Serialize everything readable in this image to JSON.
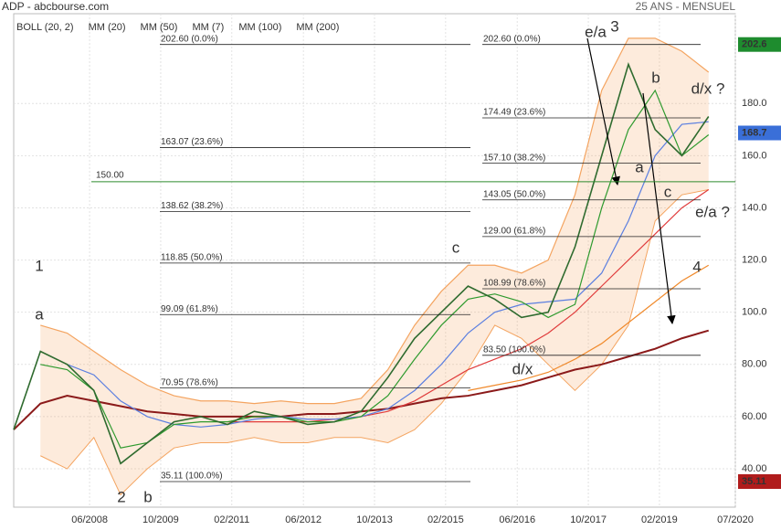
{
  "chart_data": {
    "type": "line",
    "title": "ADP - abcbourse.com",
    "subtitle": "25 ANS - MENSUEL",
    "x": [
      2007.0,
      2007.5,
      2008.0,
      2008.5,
      2009.0,
      2009.5,
      2010.0,
      2010.5,
      2011.0,
      2011.5,
      2012.0,
      2012.5,
      2013.0,
      2013.5,
      2014.0,
      2014.5,
      2015.0,
      2015.5,
      2016.0,
      2016.5,
      2017.0,
      2017.5,
      2018.0,
      2018.5,
      2019.0,
      2019.5,
      2020.0
    ],
    "series": [
      {
        "name": "ADP",
        "color": "#2f6b2f",
        "values": [
          55,
          85,
          80,
          70,
          42,
          50,
          58,
          60,
          57,
          62,
          60,
          57,
          58,
          62,
          75,
          90,
          100,
          110,
          105,
          98,
          100,
          125,
          160,
          195,
          170,
          160,
          175
        ]
      },
      {
        "name": "BOLL (20, 2)",
        "color": "#f4a460",
        "values": [
          null,
          95,
          92,
          85,
          78,
          72,
          68,
          66,
          66,
          65,
          66,
          65,
          65,
          67,
          78,
          95,
          108,
          118,
          118,
          115,
          120,
          145,
          185,
          205,
          205,
          200,
          192
        ],
        "lower": [
          null,
          45,
          40,
          52,
          30,
          40,
          48,
          50,
          50,
          52,
          50,
          50,
          52,
          52,
          50,
          55,
          65,
          78,
          95,
          90,
          80,
          70,
          80,
          95,
          135,
          145,
          147
        ]
      },
      {
        "name": "MM (20)",
        "color": "#5b7fe0",
        "values": [
          null,
          null,
          80,
          76,
          66,
          60,
          57,
          56,
          57,
          59,
          60,
          59,
          59,
          60,
          63,
          70,
          80,
          92,
          100,
          103,
          104,
          105,
          115,
          135,
          160,
          172,
          173
        ]
      },
      {
        "name": "MM (50)",
        "color": "#e03c3c",
        "values": [
          null,
          null,
          null,
          null,
          null,
          null,
          null,
          null,
          58,
          58,
          58,
          58,
          59,
          60,
          62,
          66,
          72,
          78,
          82,
          86,
          92,
          100,
          110,
          120,
          130,
          140,
          147
        ]
      },
      {
        "name": "MM (7)",
        "color": "#2e9a2e",
        "values": [
          null,
          80,
          78,
          70,
          48,
          50,
          57,
          58,
          58,
          60,
          60,
          58,
          58,
          60,
          68,
          82,
          95,
          105,
          107,
          104,
          98,
          103,
          140,
          170,
          185,
          160,
          168
        ]
      },
      {
        "name": "MM (100)",
        "color": "#f08a2c",
        "values": [
          null,
          null,
          null,
          null,
          null,
          null,
          null,
          null,
          null,
          null,
          null,
          null,
          null,
          null,
          null,
          null,
          null,
          70,
          72,
          74,
          77,
          82,
          88,
          96,
          104,
          112,
          118
        ]
      },
      {
        "name": "MM (200)",
        "color": "#8b1a1a",
        "values": [
          55,
          65,
          68,
          66,
          64,
          62,
          61,
          60,
          60,
          60,
          60,
          61,
          61,
          62,
          63,
          65,
          67,
          68,
          70,
          72,
          75,
          78,
          80,
          83,
          86,
          90,
          93
        ]
      }
    ],
    "xlim": [
      2007.0,
      2020.5
    ],
    "xticks": [
      {
        "value": 2008.42,
        "label": "06/2008"
      },
      {
        "value": 2009.75,
        "label": "10/2009"
      },
      {
        "value": 2011.08,
        "label": "02/2011"
      },
      {
        "value": 2012.42,
        "label": "06/2012"
      },
      {
        "value": 2013.75,
        "label": "10/2013"
      },
      {
        "value": 2015.08,
        "label": "02/2015"
      },
      {
        "value": 2016.42,
        "label": "06/2016"
      },
      {
        "value": 2017.75,
        "label": "10/2017"
      },
      {
        "value": 2019.08,
        "label": "02/2019"
      },
      {
        "value": 2020.5,
        "label": "07/2020"
      }
    ],
    "ylim": [
      25.3,
      214.4
    ],
    "yticks": [
      {
        "value": 40,
        "label": "40.00"
      },
      {
        "value": 60,
        "label": "60.00"
      },
      {
        "value": 80,
        "label": "80.00"
      },
      {
        "value": 100,
        "label": "100.0"
      },
      {
        "value": 120,
        "label": "120.0"
      },
      {
        "value": 140,
        "label": "140.0"
      },
      {
        "value": 160,
        "label": "160.0"
      },
      {
        "value": 180,
        "label": "180.0"
      }
    ],
    "grid": true,
    "price_tags": [
      {
        "value": 202.6,
        "color": "#1e8c2e"
      },
      {
        "value": 168.7,
        "color": "#3a6fd8"
      },
      {
        "value": 35.11,
        "color": "#b01c1c"
      }
    ],
    "hline": {
      "value": 150,
      "label": "150.00",
      "color": "#2e8b2e"
    },
    "fib_left": [
      {
        "value": 202.6,
        "label": "202.60  (0.0%)"
      },
      {
        "value": 163.07,
        "label": "163.07  (23.6%)"
      },
      {
        "value": 138.62,
        "label": "138.62  (38.2%)"
      },
      {
        "value": 118.85,
        "label": "118.85  (50.0%)"
      },
      {
        "value": 99.09,
        "label": "99.09  (61.8%)"
      },
      {
        "value": 70.95,
        "label": "70.95  (78.6%)"
      },
      {
        "value": 35.11,
        "label": "35.11  (100.0%)"
      }
    ],
    "fib_right": [
      {
        "value": 202.6,
        "label": "202.60  (0.0%)"
      },
      {
        "value": 174.49,
        "label": "174.49  (23.6%)"
      },
      {
        "value": 157.1,
        "label": "157.10  (38.2%)"
      },
      {
        "value": 143.05,
        "label": "143.05  (50.0%)"
      },
      {
        "value": 129.0,
        "label": "129.00  (61.8%)"
      },
      {
        "value": 108.99,
        "label": "108.99  (78.6%)"
      },
      {
        "value": 83.5,
        "label": "83.50  (100.0%)"
      }
    ],
    "annotations": [
      {
        "text": "1",
        "color": "#111111"
      },
      {
        "text": "a",
        "color": "#1a237e"
      },
      {
        "text": "2",
        "color": "#111111"
      },
      {
        "text": "b",
        "color": "#1a237e"
      },
      {
        "text": "c",
        "color": "#1a237e"
      },
      {
        "text": "d/x",
        "color": "#1a237e"
      },
      {
        "text": "e/a",
        "color": "#1a237e"
      },
      {
        "text": "3",
        "color": "#111111"
      },
      {
        "text": "b",
        "color": "#b71c1c"
      },
      {
        "text": "d/x ?",
        "color": "#b71c1c"
      },
      {
        "text": "a",
        "color": "#b71c1c"
      },
      {
        "text": "c",
        "color": "#b71c1c"
      },
      {
        "text": "e/a ?",
        "color": "#b71c1c"
      },
      {
        "text": "4",
        "color": "#111111"
      }
    ]
  }
}
